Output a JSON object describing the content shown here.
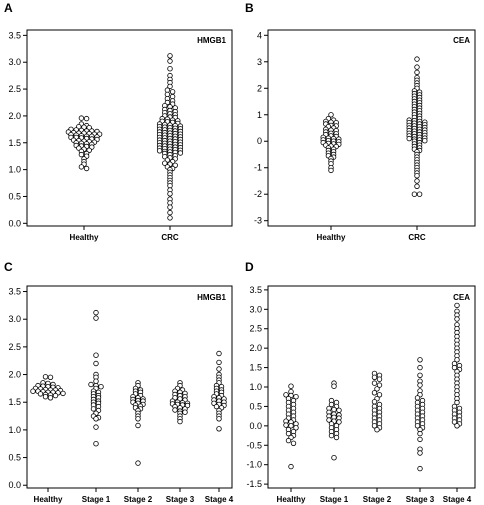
{
  "chart_data": [
    {
      "type": "scatter",
      "panel_letter": "A",
      "marker_label": "HMGB1",
      "yticks": [
        "0.0",
        "0.5",
        "1.0",
        "1.5",
        "2.0",
        "2.5",
        "3.0",
        "3.5"
      ],
      "ylim": [
        -0.05,
        3.6
      ],
      "categories": [
        "Healthy",
        "CRC"
      ],
      "series": [
        {
          "values": [
            1.95,
            1.96,
            1.8,
            1.82,
            1.85,
            1.78,
            1.79,
            1.75,
            1.72,
            1.74,
            1.73,
            1.71,
            1.7,
            1.72,
            1.69,
            1.68,
            1.67,
            1.68,
            1.66,
            1.65,
            1.64,
            1.66,
            1.63,
            1.62,
            1.61,
            1.62,
            1.6,
            1.6,
            1.58,
            1.59,
            1.57,
            1.56,
            1.55,
            1.54,
            1.53,
            1.52,
            1.5,
            1.51,
            1.49,
            1.48,
            1.47,
            1.45,
            1.44,
            1.43,
            1.42,
            1.4,
            1.38,
            1.36,
            1.34,
            1.3,
            1.28,
            1.25,
            1.2,
            1.15,
            1.1,
            1.05,
            1.02
          ]
        },
        {
          "values": [
            3.12,
            3.02,
            2.88,
            2.75,
            2.68,
            2.62,
            2.55,
            2.48,
            2.45,
            2.4,
            2.36,
            2.32,
            2.28,
            2.25,
            2.22,
            2.19,
            2.17,
            2.15,
            2.12,
            2.1,
            2.08,
            2.06,
            2.04,
            2.02,
            2.0,
            1.98,
            1.97,
            1.95,
            1.94,
            1.92,
            1.91,
            1.9,
            1.89,
            1.88,
            1.86,
            1.85,
            1.84,
            1.83,
            1.82,
            1.81,
            1.8,
            1.79,
            1.78,
            1.77,
            1.76,
            1.75,
            1.74,
            1.73,
            1.72,
            1.71,
            1.7,
            1.69,
            1.68,
            1.67,
            1.66,
            1.65,
            1.64,
            1.63,
            1.62,
            1.61,
            1.6,
            1.59,
            1.58,
            1.57,
            1.56,
            1.55,
            1.54,
            1.53,
            1.52,
            1.51,
            1.5,
            1.49,
            1.48,
            1.47,
            1.46,
            1.45,
            1.44,
            1.43,
            1.42,
            1.41,
            1.4,
            1.39,
            1.38,
            1.37,
            1.36,
            1.35,
            1.34,
            1.33,
            1.32,
            1.31,
            1.3,
            1.28,
            1.26,
            1.24,
            1.22,
            1.2,
            1.18,
            1.15,
            1.12,
            1.1,
            1.08,
            1.05,
            1.02,
            1.0,
            0.95,
            0.9,
            0.85,
            0.8,
            0.75,
            0.7,
            0.62,
            0.55,
            0.45,
            0.38,
            0.3,
            0.2,
            0.1
          ]
        }
      ]
    },
    {
      "type": "scatter",
      "panel_letter": "B",
      "marker_label": "CEA",
      "yticks": [
        "-3",
        "-2",
        "-1",
        "0",
        "1",
        "2",
        "3",
        "4"
      ],
      "ylim": [
        -3.2,
        4.2
      ],
      "categories": [
        "Healthy",
        "CRC"
      ],
      "series": [
        {
          "values": [
            1.0,
            0.85,
            0.8,
            0.75,
            0.72,
            0.7,
            0.65,
            0.6,
            0.58,
            0.55,
            0.5,
            0.45,
            0.42,
            0.4,
            0.35,
            0.3,
            0.28,
            0.25,
            0.2,
            0.18,
            0.15,
            0.12,
            0.1,
            0.08,
            0.05,
            0.02,
            0.0,
            -0.02,
            -0.05,
            -0.08,
            -0.1,
            -0.12,
            -0.15,
            -0.18,
            -0.2,
            -0.25,
            -0.3,
            -0.35,
            -0.4,
            -0.45,
            -0.5,
            -0.55,
            -0.6,
            -0.65,
            -0.75,
            -0.85,
            -1.0,
            -1.1
          ]
        },
        {
          "values": [
            3.1,
            2.8,
            2.6,
            2.4,
            2.3,
            2.2,
            2.1,
            2.0,
            1.9,
            1.85,
            1.8,
            1.75,
            1.7,
            1.65,
            1.6,
            1.55,
            1.5,
            1.45,
            1.4,
            1.35,
            1.3,
            1.25,
            1.2,
            1.15,
            1.1,
            1.05,
            1.0,
            0.95,
            0.9,
            0.85,
            0.8,
            0.78,
            0.75,
            0.72,
            0.7,
            0.68,
            0.65,
            0.62,
            0.6,
            0.58,
            0.55,
            0.52,
            0.5,
            0.48,
            0.45,
            0.42,
            0.4,
            0.38,
            0.35,
            0.32,
            0.3,
            0.28,
            0.25,
            0.22,
            0.2,
            0.18,
            0.15,
            0.12,
            0.1,
            0.08,
            0.05,
            0.02,
            0.0,
            -0.05,
            -0.1,
            -0.15,
            -0.2,
            -0.25,
            -0.3,
            -0.35,
            -0.4,
            -0.5,
            -0.6,
            -0.7,
            -0.8,
            -0.9,
            -1.0,
            -1.1,
            -1.2,
            -1.3,
            -1.5,
            -1.7,
            -2.0,
            -2.0
          ]
        }
      ]
    },
    {
      "type": "scatter",
      "panel_letter": "C",
      "marker_label": "HMGB1",
      "yticks": [
        "0.0",
        "0.5",
        "1.0",
        "1.5",
        "2.0",
        "2.5",
        "3.0",
        "3.5"
      ],
      "ylim": [
        -0.05,
        3.6
      ],
      "categories": [
        "Healthy",
        "Stage 1",
        "Stage 2",
        "Stage 3",
        "Stage 4"
      ],
      "series": [
        {
          "values": [
            1.95,
            1.96,
            1.85,
            1.84,
            1.82,
            1.8,
            1.79,
            1.78,
            1.77,
            1.76,
            1.75,
            1.74,
            1.73,
            1.72,
            1.72,
            1.71,
            1.7,
            1.7,
            1.69,
            1.68,
            1.68,
            1.67,
            1.66,
            1.65,
            1.64,
            1.63,
            1.62,
            1.6,
            1.58
          ]
        },
        {
          "values": [
            3.12,
            3.02,
            2.35,
            2.2,
            2.0,
            1.95,
            1.88,
            1.82,
            1.8,
            1.78,
            1.75,
            1.7,
            1.68,
            1.65,
            1.62,
            1.6,
            1.58,
            1.55,
            1.52,
            1.5,
            1.48,
            1.45,
            1.42,
            1.38,
            1.35,
            1.3,
            1.25,
            1.22,
            1.2,
            1.05,
            0.75
          ]
        },
        {
          "values": [
            1.85,
            1.8,
            1.75,
            1.72,
            1.7,
            1.68,
            1.65,
            1.62,
            1.6,
            1.58,
            1.56,
            1.55,
            1.53,
            1.52,
            1.5,
            1.48,
            1.46,
            1.45,
            1.43,
            1.4,
            1.38,
            1.35,
            1.3,
            1.25,
            1.2,
            1.08,
            0.4
          ]
        },
        {
          "values": [
            1.85,
            1.8,
            1.75,
            1.72,
            1.7,
            1.68,
            1.66,
            1.64,
            1.62,
            1.6,
            1.58,
            1.56,
            1.54,
            1.52,
            1.5,
            1.49,
            1.48,
            1.47,
            1.46,
            1.45,
            1.44,
            1.42,
            1.4,
            1.38,
            1.36,
            1.34,
            1.32,
            1.3,
            1.25,
            1.2,
            1.15
          ]
        },
        {
          "values": [
            2.38,
            2.22,
            2.1,
            2.0,
            1.95,
            1.9,
            1.85,
            1.8,
            1.78,
            1.75,
            1.72,
            1.7,
            1.68,
            1.65,
            1.62,
            1.6,
            1.58,
            1.56,
            1.54,
            1.52,
            1.5,
            1.48,
            1.46,
            1.44,
            1.42,
            1.4,
            1.35,
            1.3,
            1.25,
            1.2,
            1.02
          ]
        }
      ]
    },
    {
      "type": "scatter",
      "panel_letter": "D",
      "marker_label": "CEA",
      "yticks": [
        "-1.5",
        "-1.0",
        "-0.5",
        "0.0",
        "0.5",
        "1.0",
        "1.5",
        "2.0",
        "2.5",
        "3.0",
        "3.5"
      ],
      "ylim": [
        -1.6,
        3.6
      ],
      "categories": [
        "Healthy",
        "Stage 1",
        "Stage 2",
        "Stage 3",
        "Stage 4"
      ],
      "series": [
        {
          "values": [
            1.02,
            0.88,
            0.8,
            0.78,
            0.75,
            0.7,
            0.65,
            0.6,
            0.55,
            0.5,
            0.45,
            0.4,
            0.35,
            0.3,
            0.25,
            0.2,
            0.15,
            0.12,
            0.1,
            0.05,
            0.02,
            0.0,
            -0.05,
            -0.1,
            -0.15,
            -0.2,
            -0.25,
            -0.3,
            -0.38,
            -0.45,
            -1.05
          ]
        },
        {
          "values": [
            1.1,
            1.02,
            0.65,
            0.6,
            0.55,
            0.5,
            0.45,
            0.42,
            0.4,
            0.35,
            0.3,
            0.28,
            0.25,
            0.22,
            0.2,
            0.15,
            0.12,
            0.1,
            0.05,
            0.0,
            -0.05,
            -0.1,
            -0.15,
            -0.2,
            -0.25,
            -0.3,
            -0.82
          ]
        },
        {
          "values": [
            1.35,
            1.3,
            1.25,
            1.2,
            1.1,
            1.05,
            0.95,
            0.85,
            0.8,
            0.7,
            0.62,
            0.55,
            0.5,
            0.45,
            0.4,
            0.35,
            0.3,
            0.25,
            0.2,
            0.15,
            0.1,
            0.05,
            0.0,
            -0.05,
            -0.1
          ]
        },
        {
          "values": [
            1.7,
            1.5,
            1.3,
            1.15,
            1.05,
            0.9,
            0.8,
            0.72,
            0.65,
            0.6,
            0.55,
            0.5,
            0.45,
            0.4,
            0.35,
            0.3,
            0.25,
            0.2,
            0.15,
            0.1,
            0.05,
            0.0,
            -0.05,
            -0.1,
            -0.2,
            -0.35,
            -0.6,
            -0.7,
            -1.1
          ]
        },
        {
          "values": [
            3.1,
            2.95,
            2.85,
            2.75,
            2.6,
            2.5,
            2.4,
            2.3,
            2.2,
            2.1,
            2.0,
            1.9,
            1.8,
            1.7,
            1.6,
            1.55,
            1.5,
            1.45,
            1.4,
            1.3,
            1.2,
            1.1,
            1.0,
            0.9,
            0.8,
            0.7,
            0.6,
            0.5,
            0.45,
            0.4,
            0.35,
            0.3,
            0.25,
            0.2,
            0.15,
            0.1,
            0.05,
            0.0
          ]
        }
      ]
    }
  ]
}
